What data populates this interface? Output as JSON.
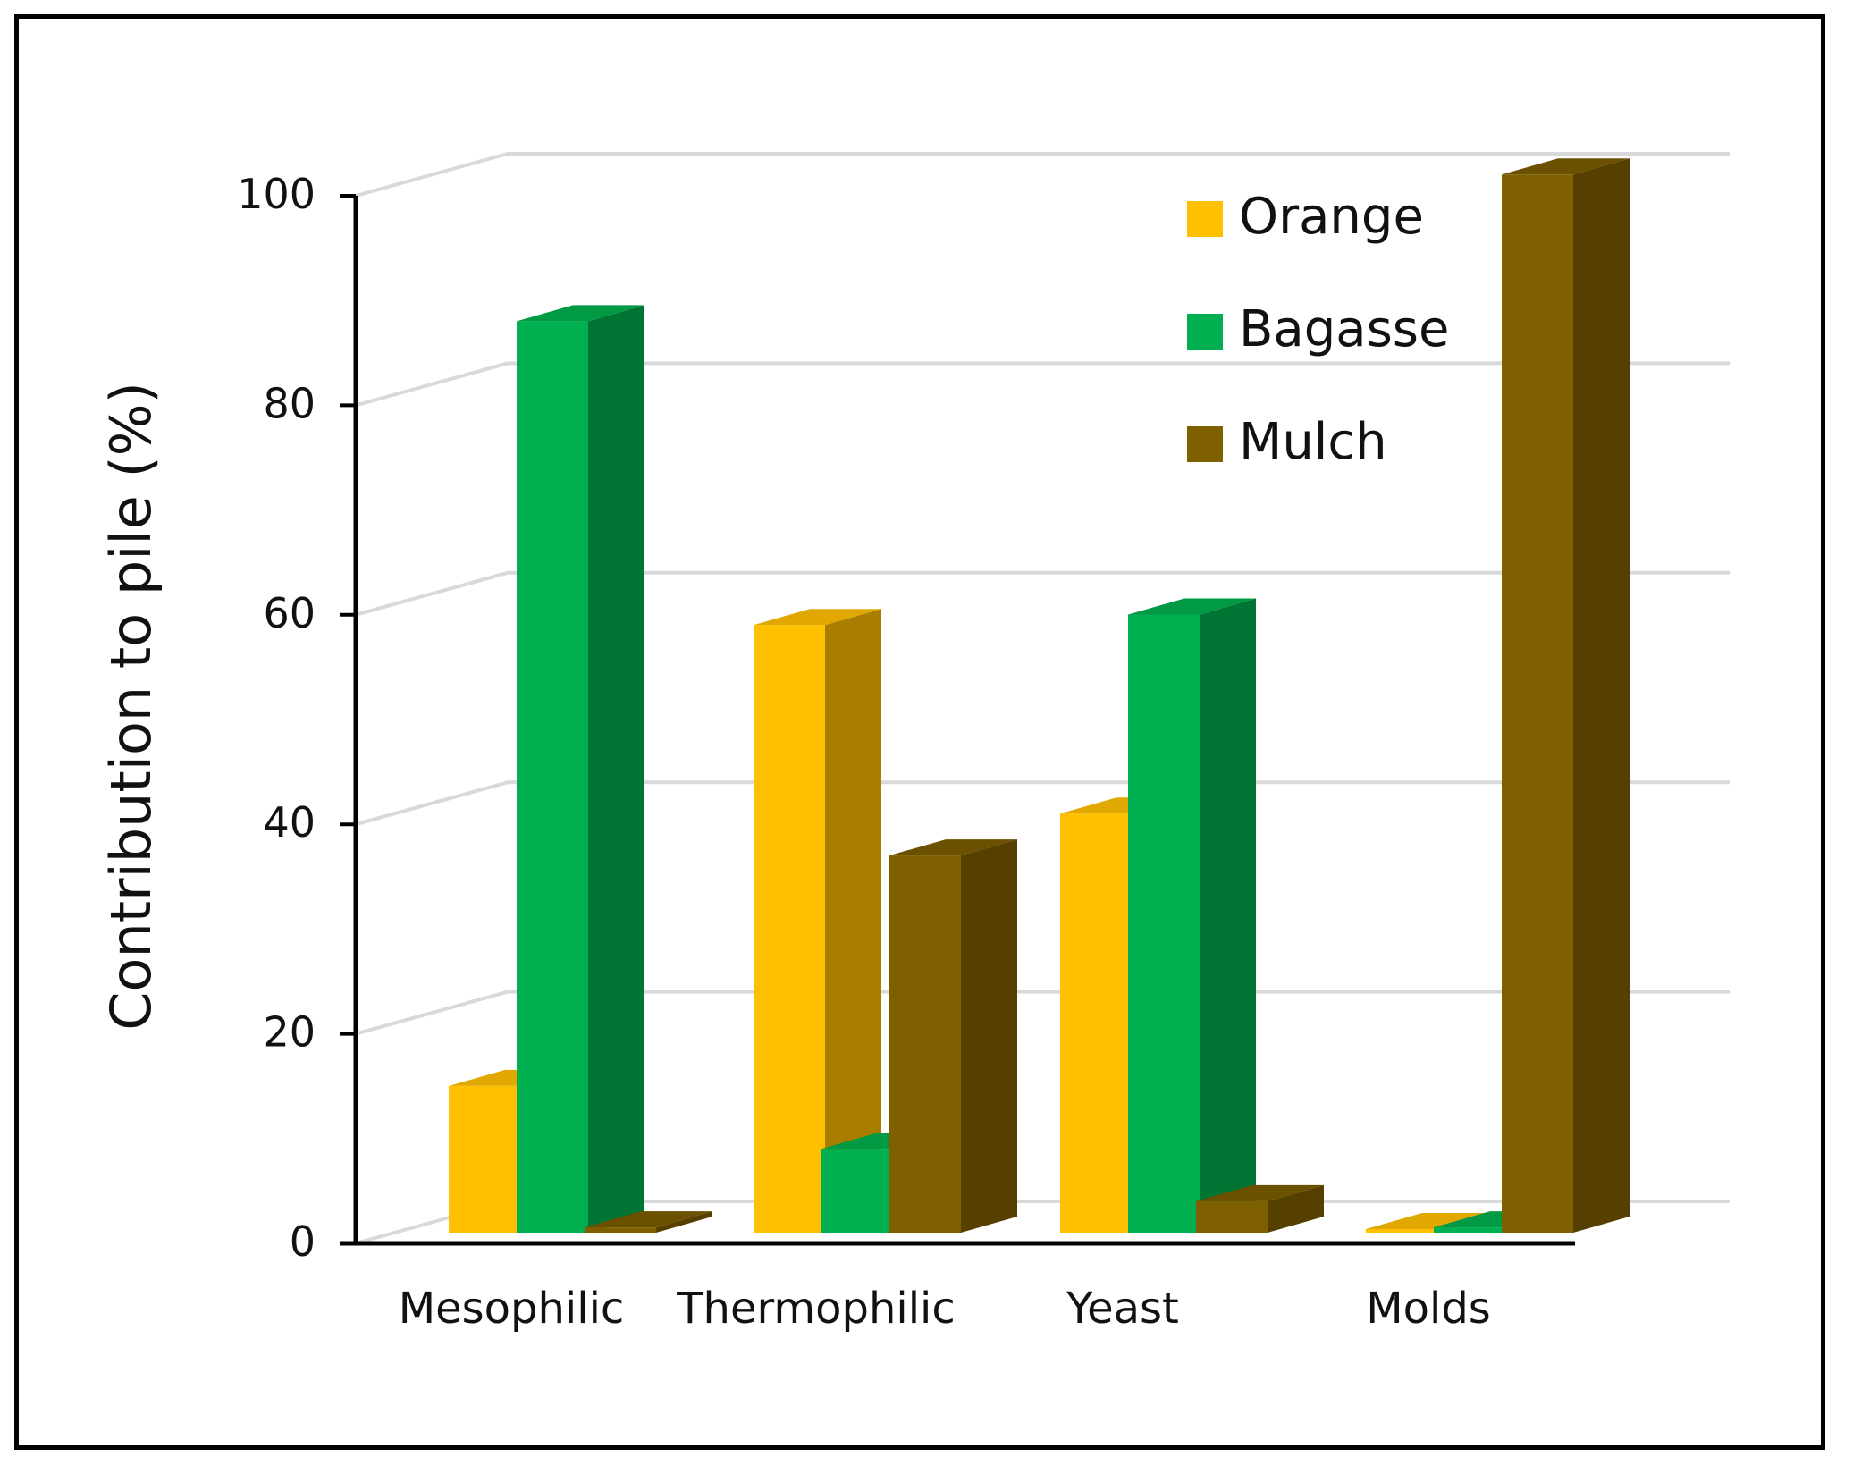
{
  "chart_data": {
    "type": "bar",
    "title": "",
    "xlabel": "",
    "ylabel": "Contribution to pile (%)",
    "ylim": [
      0,
      100
    ],
    "yticks": [
      0,
      20,
      40,
      60,
      80,
      100
    ],
    "grid": true,
    "legend_position": "top-right",
    "categories": [
      "Mesophilic",
      "Thermophilic",
      "Yeast",
      "Molds"
    ],
    "series": [
      {
        "name": "Orange",
        "color": "#FFC000",
        "side_color": "#A87D00",
        "top_color": "#E0A800",
        "values": [
          14,
          58,
          40,
          0
        ]
      },
      {
        "name": "Bagasse",
        "color": "#00B050",
        "side_color": "#007533",
        "top_color": "#009944",
        "values": [
          87,
          8,
          59,
          0.5
        ]
      },
      {
        "name": "Mulch",
        "color": "#7F6000",
        "side_color": "#564000",
        "top_color": "#6B5000",
        "values": [
          0.5,
          36,
          3,
          101
        ]
      }
    ]
  }
}
